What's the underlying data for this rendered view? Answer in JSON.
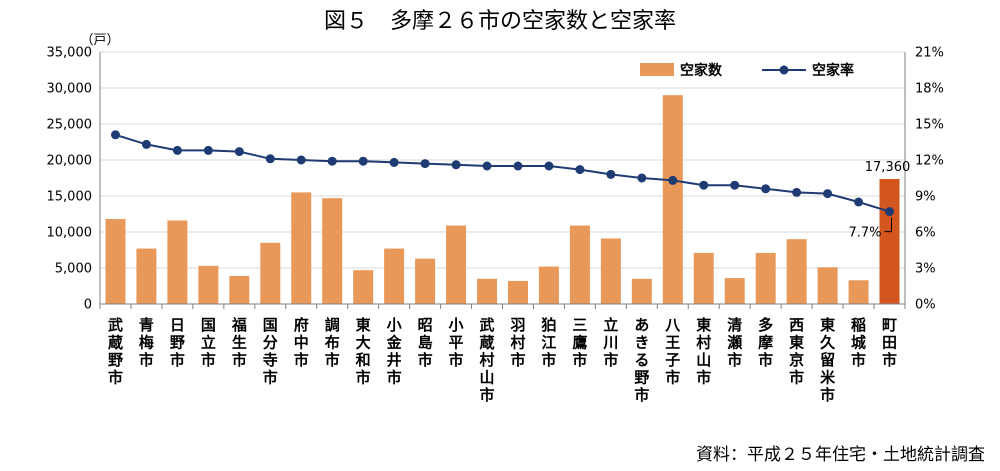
{
  "title": "図５　多摩２６市の空家数と空家率",
  "unit_label": "（戸）",
  "source": "資料：平成２５年住宅・土地統計調査",
  "colors": {
    "bar": "#e8995a",
    "bar_highlight": "#d4561f",
    "line": "#1f3b73",
    "grid": "#d9d9d9",
    "axis": "#808080"
  },
  "chart_data": {
    "type": "bar",
    "categories": [
      "武蔵野市",
      "青梅市",
      "日野市",
      "国立市",
      "福生市",
      "国分寺市",
      "府中市",
      "調布市",
      "東大和市",
      "小金井市",
      "昭島市",
      "小平市",
      "武蔵村山市",
      "羽村市",
      "狛江市",
      "三鷹市",
      "立川市",
      "あきる野市",
      "八王子市",
      "東村山市",
      "清瀬市",
      "多摩市",
      "西東京市",
      "東久留米市",
      "稲城市",
      "町田市"
    ],
    "series": [
      {
        "name": "空家数",
        "type": "bar",
        "axis": "left",
        "values": [
          11800,
          7700,
          11600,
          5300,
          3900,
          8500,
          15500,
          14700,
          4700,
          7700,
          6300,
          10900,
          3500,
          3200,
          5200,
          10900,
          9100,
          3500,
          29000,
          7100,
          3600,
          7100,
          9000,
          5100,
          3300,
          17360
        ]
      },
      {
        "name": "空家率",
        "type": "line",
        "axis": "right",
        "values": [
          14.1,
          13.3,
          12.8,
          12.8,
          12.7,
          12.1,
          12.0,
          11.9,
          11.9,
          11.8,
          11.7,
          11.6,
          11.5,
          11.5,
          11.5,
          11.2,
          10.8,
          10.5,
          10.3,
          9.9,
          9.9,
          9.6,
          9.3,
          9.2,
          8.5,
          7.7
        ]
      }
    ],
    "highlight_index": 25,
    "annotations": [
      {
        "index": 25,
        "series": "空家数",
        "text": "17,360"
      },
      {
        "index": 25,
        "series": "空家率",
        "text": "7.7%"
      }
    ],
    "y_left": {
      "min": 0,
      "max": 35000,
      "step": 5000,
      "tick_labels": [
        "0",
        "5,000",
        "10,000",
        "15,000",
        "20,000",
        "25,000",
        "30,000",
        "35,000"
      ]
    },
    "y_right": {
      "min": 0,
      "max": 21,
      "step": 3,
      "tick_labels": [
        "0%",
        "3%",
        "6%",
        "9%",
        "12%",
        "15%",
        "18%",
        "21%"
      ]
    },
    "grid": true,
    "legend_position": "top-right"
  }
}
